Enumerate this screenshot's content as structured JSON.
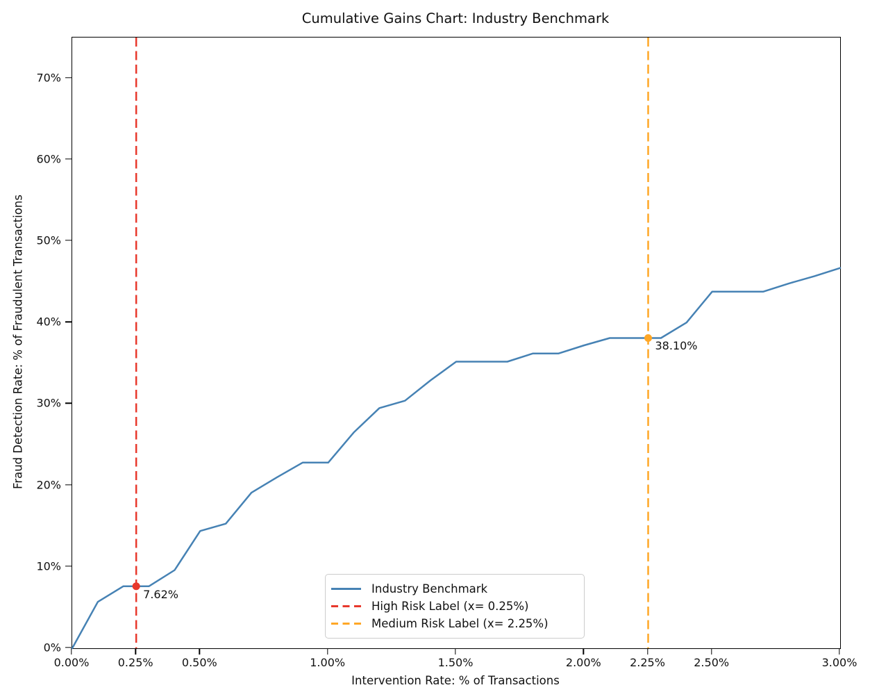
{
  "chart_data": {
    "type": "line",
    "title": "Cumulative Gains Chart: Industry Benchmark",
    "xlabel": "Intervention Rate: % of Transactions",
    "ylabel": "Fraud Detection Rate: % of Fraudulent Transactions",
    "xlim": [
      0,
      3
    ],
    "ylim": [
      0,
      75
    ],
    "grid": false,
    "x_ticks": [
      {
        "v": 0,
        "label": "0.00%"
      },
      {
        "v": 0.25,
        "label": "0.25%"
      },
      {
        "v": 0.5,
        "label": "0.50%"
      },
      {
        "v": 1.0,
        "label": "1.00%"
      },
      {
        "v": 1.5,
        "label": "1.50%"
      },
      {
        "v": 2.0,
        "label": "2.00%"
      },
      {
        "v": 2.25,
        "label": "2.25%"
      },
      {
        "v": 2.5,
        "label": "2.50%"
      },
      {
        "v": 3.0,
        "label": "3.00%"
      }
    ],
    "y_ticks": [
      {
        "v": 0,
        "label": "0%"
      },
      {
        "v": 10,
        "label": "10%"
      },
      {
        "v": 20,
        "label": "20%"
      },
      {
        "v": 30,
        "label": "30%"
      },
      {
        "v": 40,
        "label": "40%"
      },
      {
        "v": 50,
        "label": "50%"
      },
      {
        "v": 60,
        "label": "60%"
      },
      {
        "v": 70,
        "label": "70%"
      }
    ],
    "series": [
      {
        "name": "Industry Benchmark",
        "color": "#4682b4",
        "style": "solid",
        "x": [
          0,
          0.1,
          0.2,
          0.3,
          0.4,
          0.5,
          0.6,
          0.7,
          0.8,
          0.9,
          1.0,
          1.1,
          1.2,
          1.3,
          1.4,
          1.5,
          1.6,
          1.7,
          1.8,
          1.9,
          2.0,
          2.1,
          2.2,
          2.25,
          2.3,
          2.4,
          2.5,
          2.6,
          2.7,
          2.8,
          2.9,
          3.0
        ],
        "y": [
          0,
          5.7,
          7.62,
          7.62,
          9.6,
          14.4,
          15.3,
          19.1,
          21.0,
          22.8,
          22.8,
          26.5,
          29.5,
          30.4,
          32.9,
          35.2,
          35.2,
          35.2,
          36.2,
          36.2,
          37.2,
          38.1,
          38.1,
          38.1,
          38.1,
          40.0,
          43.8,
          43.8,
          43.8,
          44.8,
          45.7,
          46.7
        ]
      }
    ],
    "vlines": [
      {
        "name": "High Risk Label (x= 0.25%)",
        "x": 0.25,
        "color": "#e8382c",
        "style": "dashed",
        "marker": {
          "x": 0.25,
          "y": 7.62
        },
        "annotation": "7.62%"
      },
      {
        "name": "Medium Risk Label (x= 2.25%)",
        "x": 2.25,
        "color": "#ffa726",
        "style": "dashed",
        "marker": {
          "x": 2.25,
          "y": 38.1
        },
        "annotation": "38.10%"
      }
    ],
    "legend": {
      "location": "lower center",
      "entries": [
        {
          "label": "Industry Benchmark",
          "color": "#4682b4",
          "style": "solid"
        },
        {
          "label": "High Risk Label (x= 0.25%)",
          "color": "#e8382c",
          "style": "dashed"
        },
        {
          "label": "Medium Risk Label (x= 2.25%)",
          "color": "#ffa726",
          "style": "dashed"
        }
      ]
    }
  }
}
